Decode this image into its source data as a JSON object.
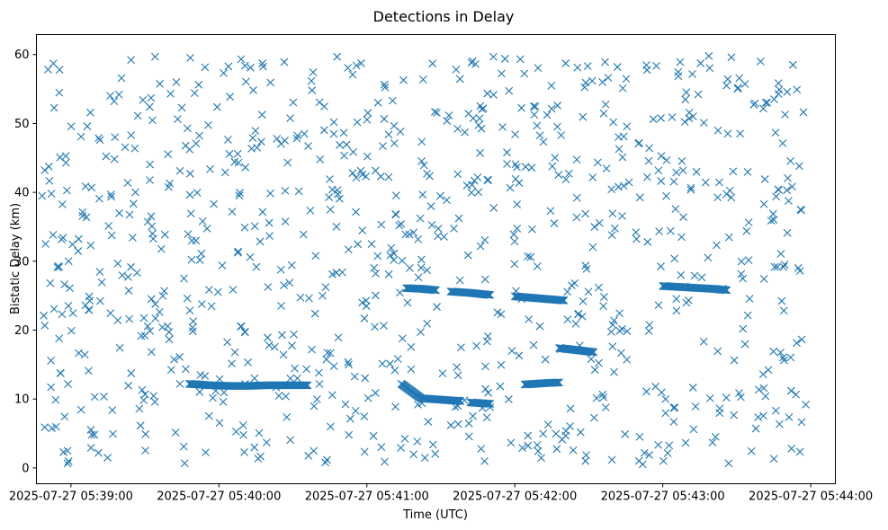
{
  "chart_data": {
    "type": "scatter",
    "title": "Detections in Delay",
    "xlabel": "Time (UTC)",
    "ylabel": "Bistatic Delay (km)",
    "marker": "x",
    "color": "#1f77b4",
    "grid": false,
    "legend": "none",
    "xlim": [
      "2025-07-27 05:38:46",
      "2025-07-27 05:44:10"
    ],
    "ylim": [
      -2.3,
      62.9
    ],
    "xticks": [
      "2025-07-27 05:39:00",
      "2025-07-27 05:40:00",
      "2025-07-27 05:41:00",
      "2025-07-27 05:42:00",
      "2025-07-27 05:43:00",
      "2025-07-27 05:44:00"
    ],
    "yticks": [
      0,
      10,
      20,
      30,
      40,
      50,
      60
    ],
    "tracks": [
      {
        "points": [
          [
            "2025-07-27 05:39:48",
            12.2
          ],
          [
            "2025-07-27 05:39:56",
            12.0
          ],
          [
            "2025-07-27 05:40:04",
            11.9
          ],
          [
            "2025-07-27 05:40:12",
            11.9
          ],
          [
            "2025-07-27 05:40:20",
            12.0
          ],
          [
            "2025-07-27 05:40:28",
            12.0
          ],
          [
            "2025-07-27 05:40:36",
            12.0
          ]
        ]
      },
      {
        "points": [
          [
            "2025-07-27 05:41:16",
            26.1
          ],
          [
            "2025-07-27 05:41:22",
            26.0
          ],
          [
            "2025-07-27 05:41:28",
            25.8
          ]
        ]
      },
      {
        "points": [
          [
            "2025-07-27 05:41:34",
            25.6
          ],
          [
            "2025-07-27 05:41:42",
            25.4
          ],
          [
            "2025-07-27 05:41:50",
            25.1
          ]
        ]
      },
      {
        "points": [
          [
            "2025-07-27 05:42:00",
            24.9
          ],
          [
            "2025-07-27 05:42:10",
            24.6
          ],
          [
            "2025-07-27 05:42:20",
            24.3
          ]
        ]
      },
      {
        "points": [
          [
            "2025-07-27 05:42:18",
            17.4
          ],
          [
            "2025-07-27 05:42:25",
            17.1
          ],
          [
            "2025-07-27 05:42:32",
            16.8
          ]
        ]
      },
      {
        "points": [
          [
            "2025-07-27 05:41:14",
            12.2
          ],
          [
            "2025-07-27 05:41:22",
            10.1
          ],
          [
            "2025-07-27 05:41:30",
            9.9
          ],
          [
            "2025-07-27 05:41:38",
            9.7
          ]
        ]
      },
      {
        "points": [
          [
            "2025-07-27 05:41:42",
            9.5
          ],
          [
            "2025-07-27 05:41:50",
            9.3
          ]
        ]
      },
      {
        "points": [
          [
            "2025-07-27 05:42:04",
            12.1
          ],
          [
            "2025-07-27 05:42:12",
            12.3
          ],
          [
            "2025-07-27 05:42:18",
            12.4
          ]
        ]
      },
      {
        "points": [
          [
            "2025-07-27 05:43:00",
            26.4
          ],
          [
            "2025-07-27 05:43:10",
            26.2
          ],
          [
            "2025-07-27 05:43:20",
            26.0
          ],
          [
            "2025-07-27 05:43:26",
            25.8
          ]
        ]
      }
    ],
    "scatter_count": 900,
    "scatter_x_range": [
      "2025-07-27 05:38:48",
      "2025-07-27 05:43:58"
    ],
    "scatter_y_range": [
      0.5,
      59.9
    ]
  }
}
